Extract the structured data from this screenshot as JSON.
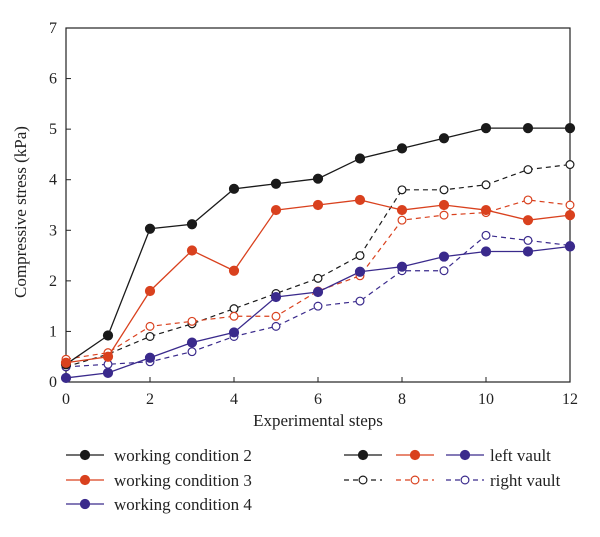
{
  "chart_data": {
    "type": "line",
    "xlabel": "Experimental steps",
    "ylabel": "Compressive stress (kPa)",
    "xlim": [
      0,
      12
    ],
    "ylim": [
      0,
      7
    ],
    "xticks": [
      "0",
      "2",
      "4",
      "6",
      "8",
      "10",
      "12"
    ],
    "yticks": [
      "0",
      "1",
      "2",
      "3",
      "4",
      "5",
      "6",
      "7"
    ],
    "grid": false,
    "x": [
      0,
      1,
      2,
      3,
      4,
      5,
      6,
      7,
      8,
      9,
      10,
      11,
      12
    ],
    "series": [
      {
        "condition": 2,
        "vault": "left",
        "color": "#1a1a1a",
        "values": [
          0.35,
          0.92,
          3.03,
          3.12,
          3.82,
          3.92,
          4.02,
          4.42,
          4.62,
          4.82,
          5.02,
          5.02,
          5.02
        ]
      },
      {
        "condition": 3,
        "vault": "left",
        "color": "#d9411e",
        "values": [
          0.38,
          0.5,
          1.8,
          2.6,
          2.2,
          3.4,
          3.5,
          3.6,
          3.4,
          3.5,
          3.4,
          3.2,
          3.3
        ]
      },
      {
        "condition": 4,
        "vault": "left",
        "color": "#3a2a8c",
        "values": [
          0.08,
          0.18,
          0.48,
          0.78,
          0.98,
          1.68,
          1.78,
          2.18,
          2.28,
          2.48,
          2.58,
          2.58,
          2.68
        ]
      },
      {
        "condition": 2,
        "vault": "right",
        "color": "#1a1a1a",
        "values": [
          0.3,
          0.55,
          0.9,
          1.15,
          1.45,
          1.75,
          2.05,
          2.5,
          3.8,
          3.8,
          3.9,
          4.2,
          4.3
        ]
      },
      {
        "condition": 3,
        "vault": "right",
        "color": "#d9411e",
        "values": [
          0.45,
          0.58,
          1.1,
          1.2,
          1.3,
          1.3,
          1.8,
          2.1,
          3.2,
          3.3,
          3.35,
          3.6,
          3.5
        ]
      },
      {
        "condition": 4,
        "vault": "right",
        "color": "#3a2a8c",
        "values": [
          0.3,
          0.35,
          0.4,
          0.6,
          0.9,
          1.1,
          1.5,
          1.6,
          2.2,
          2.2,
          2.9,
          2.8,
          2.7
        ]
      }
    ],
    "legend": {
      "placement": "bottom",
      "conditions": [
        {
          "label": "working condition 2",
          "color": "#1a1a1a"
        },
        {
          "label": "working condition 3",
          "color": "#d9411e"
        },
        {
          "label": "working condition 4",
          "color": "#3a2a8c"
        }
      ],
      "styles": [
        {
          "label": "left vault",
          "filled": true
        },
        {
          "label": "right vault",
          "filled": false
        }
      ]
    }
  }
}
